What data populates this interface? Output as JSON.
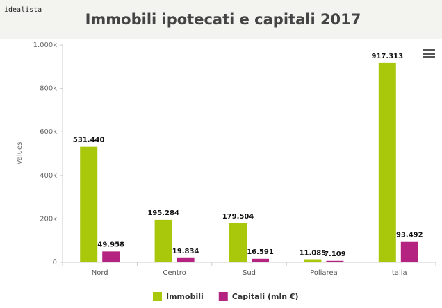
{
  "brand": "idealista",
  "chart_data": {
    "type": "bar",
    "title": "Immobili ipotecati e capitali 2017",
    "y_label": "Values",
    "categories": [
      "Nord",
      "Centro",
      "Sud",
      "Poliarea",
      "Italia"
    ],
    "series": [
      {
        "name": "Immobili",
        "color": "#a9c80c",
        "values": [
          531440,
          195284,
          179504,
          11085,
          917313
        ],
        "value_labels": [
          "531.440",
          "195.284",
          "179.504",
          "11.085",
          "917.313"
        ]
      },
      {
        "name": "Capitali (mln €)",
        "color": "#b3237f",
        "values": [
          49958,
          19834,
          16591,
          7109,
          93492
        ],
        "value_labels": [
          "49.958",
          "19.834",
          "16.591",
          "7.109",
          "93.492"
        ]
      }
    ],
    "ylim": [
      0,
      1000000
    ],
    "yticks": [
      0,
      {
        "value": 200000,
        "label": "200k"
      },
      {
        "value": 400000,
        "label": "400k"
      },
      {
        "value": 600000,
        "label": "600k"
      },
      {
        "value": 800000,
        "label": "800k"
      },
      {
        "value": 1000000,
        "label": "1.000k"
      }
    ],
    "grid": false,
    "legend": "bottom"
  }
}
